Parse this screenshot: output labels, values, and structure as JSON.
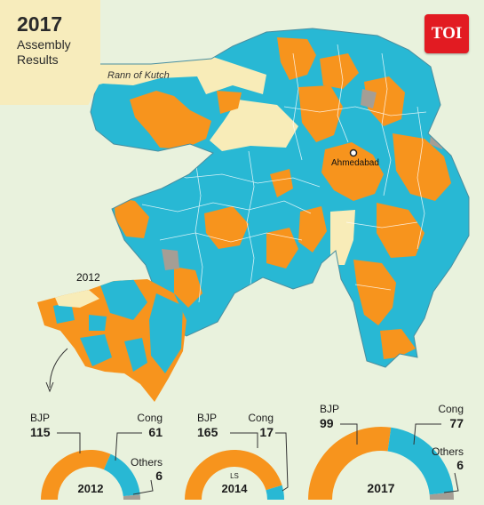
{
  "title": {
    "year": "2017",
    "line1": "Assembly",
    "line2": "Results"
  },
  "brand": {
    "logo_text": "TOI"
  },
  "map": {
    "region_label": "Rann of Kutch",
    "city_label": "Ahmedabad",
    "inset_label": "2012",
    "colors": {
      "bjp": "#f7941d",
      "cong": "#28b8d4",
      "others": "#a59e95",
      "land": "#f8ecb8",
      "background": "#e9f2dd"
    }
  },
  "charts": [
    {
      "year": "2012",
      "sub": "",
      "bjp_label": "BJP",
      "bjp": "115",
      "cong_label": "Cong",
      "cong": "61",
      "others_label": "Others",
      "others": "6"
    },
    {
      "year": "2014",
      "sub": "LS",
      "bjp_label": "BJP",
      "bjp": "165",
      "cong_label": "Cong",
      "cong": "17",
      "others_label": "",
      "others": ""
    },
    {
      "year": "2017",
      "sub": "",
      "bjp_label": "BJP",
      "bjp": "99",
      "cong_label": "Cong",
      "cong": "77",
      "others_label": "Others",
      "others": "6"
    }
  ],
  "chart_data": [
    {
      "type": "pie",
      "title": "2012",
      "categories": [
        "BJP",
        "Cong",
        "Others"
      ],
      "values": [
        115,
        61,
        6
      ]
    },
    {
      "type": "pie",
      "title": "2014",
      "subtitle": "LS",
      "categories": [
        "BJP",
        "Cong"
      ],
      "values": [
        165,
        17
      ]
    },
    {
      "type": "pie",
      "title": "2017",
      "categories": [
        "BJP",
        "Cong",
        "Others"
      ],
      "values": [
        99,
        77,
        6
      ]
    }
  ]
}
